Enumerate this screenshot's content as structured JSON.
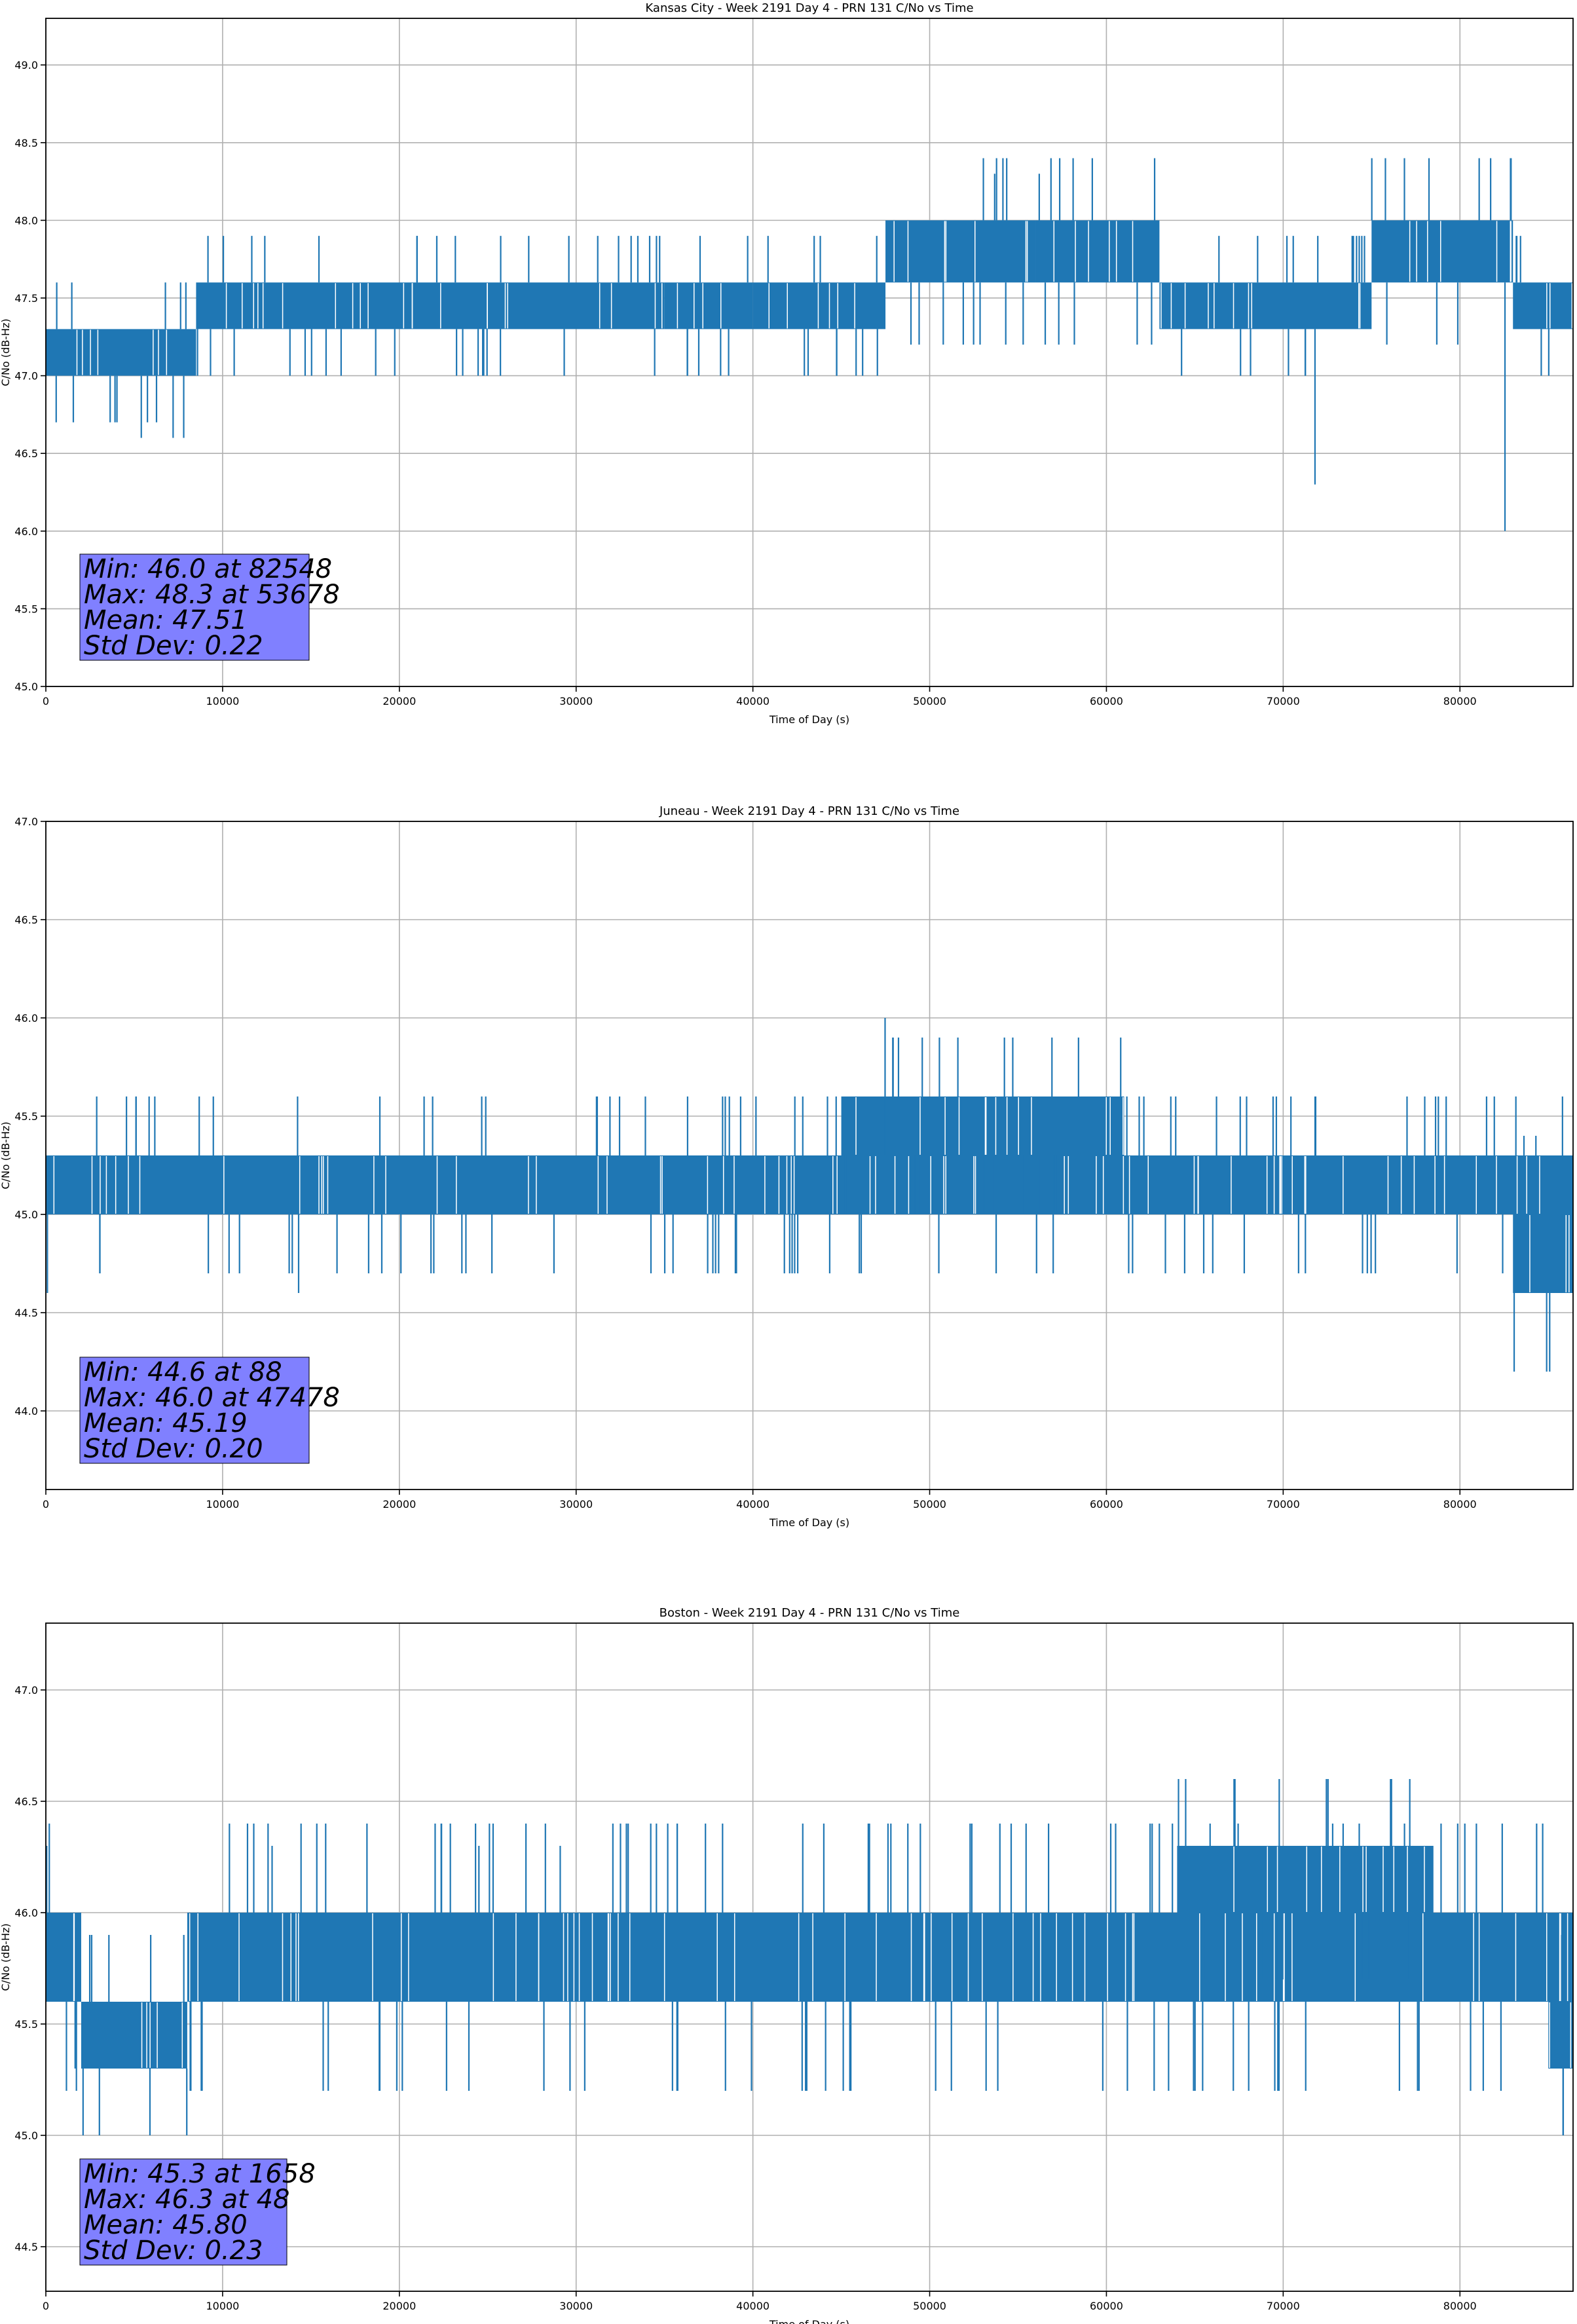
{
  "chart_data": [
    {
      "type": "line",
      "title": "Kansas City - Week 2191 Day 4 - PRN 131 C/No vs Time",
      "xlabel": "Time of Day (s)",
      "ylabel": "C/No (dB-Hz)",
      "xlim": [
        0,
        86400
      ],
      "ylim": [
        45.0,
        49.3
      ],
      "xticks": [
        0,
        10000,
        20000,
        30000,
        40000,
        50000,
        60000,
        70000,
        80000
      ],
      "yticks": [
        45.0,
        45.5,
        46.0,
        46.5,
        47.0,
        47.5,
        48.0,
        48.5,
        49.0
      ],
      "xtick_labels": [
        "0",
        "10000",
        "20000",
        "30000",
        "40000",
        "50000",
        "60000",
        "70000",
        "80000"
      ],
      "ytick_labels": [
        "45.0",
        "45.5",
        "46.0",
        "46.5",
        "47.0",
        "47.5",
        "48.0",
        "48.5",
        "49.0"
      ],
      "grid": true,
      "series_color": "#1f77b4",
      "band_segments": [
        [
          0,
          8500,
          47.0,
          47.3
        ],
        [
          8500,
          35000,
          47.3,
          47.6
        ],
        [
          35000,
          40000,
          47.3,
          47.6
        ],
        [
          40000,
          47500,
          47.3,
          47.6
        ],
        [
          47500,
          56000,
          47.6,
          48.0
        ],
        [
          56000,
          63000,
          47.6,
          48.0
        ],
        [
          63000,
          75000,
          47.3,
          47.6
        ],
        [
          75000,
          83000,
          47.6,
          48.0
        ],
        [
          83000,
          86400,
          47.3,
          47.6
        ]
      ],
      "spikes": [
        [
          5400,
          46.6
        ],
        [
          7200,
          46.6
        ],
        [
          7800,
          46.6
        ],
        [
          53678,
          48.3
        ],
        [
          56200,
          48.3
        ],
        [
          71800,
          46.3
        ],
        [
          82548,
          46.0
        ]
      ],
      "stats": [
        "Min: 46.0 at 82548",
        "Max: 48.3 at 53678",
        "Mean: 47.51",
        "Std Dev: 0.22"
      ],
      "stats_box_color": "#8080ff"
    },
    {
      "type": "line",
      "title": "Juneau - Week 2191 Day 4 - PRN 131 C/No vs Time",
      "xlabel": "Time of Day (s)",
      "ylabel": "C/No (dB-Hz)",
      "xlim": [
        0,
        86400
      ],
      "ylim": [
        43.6,
        47.0
      ],
      "xticks": [
        0,
        10000,
        20000,
        30000,
        40000,
        50000,
        60000,
        70000,
        80000
      ],
      "yticks": [
        44.0,
        44.5,
        45.0,
        45.5,
        46.0,
        46.5,
        47.0
      ],
      "xtick_labels": [
        "0",
        "10000",
        "20000",
        "30000",
        "40000",
        "50000",
        "60000",
        "70000",
        "80000"
      ],
      "ytick_labels": [
        "44.0",
        "44.5",
        "45.0",
        "45.5",
        "46.0",
        "46.5",
        "47.0"
      ],
      "grid": true,
      "series_color": "#1f77b4",
      "band_segments": [
        [
          0,
          86400,
          45.0,
          45.3
        ],
        [
          45000,
          55000,
          45.3,
          45.6
        ],
        [
          55000,
          61000,
          45.3,
          45.6
        ],
        [
          83000,
          86400,
          44.6,
          45.0
        ]
      ],
      "spikes": [
        [
          88,
          44.6
        ],
        [
          14300,
          44.6
        ],
        [
          47478,
          46.0
        ]
      ],
      "stats": [
        "Min: 44.6 at 88",
        "Max: 46.0 at 47478",
        "Mean: 45.19",
        "Std Dev: 0.20"
      ],
      "stats_box_color": "#8080ff"
    },
    {
      "type": "line",
      "title": "Boston - Week 2191 Day 4 - PRN 131 C/No vs Time",
      "xlabel": "Time of Day (s)",
      "ylabel": "C/No (dB-Hz)",
      "xlim": [
        0,
        86400
      ],
      "ylim": [
        44.3,
        47.3
      ],
      "xticks": [
        0,
        10000,
        20000,
        30000,
        40000,
        50000,
        60000,
        70000,
        80000
      ],
      "yticks": [
        44.5,
        45.0,
        45.5,
        46.0,
        46.5,
        47.0
      ],
      "xtick_labels": [
        "0",
        "10000",
        "20000",
        "30000",
        "40000",
        "50000",
        "60000",
        "70000",
        "80000"
      ],
      "ytick_labels": [
        "44.5",
        "45.0",
        "45.5",
        "46.0",
        "46.5",
        "47.0"
      ],
      "grid": true,
      "series_color": "#1f77b4",
      "band_segments": [
        [
          0,
          2000,
          45.6,
          46.0
        ],
        [
          2000,
          8000,
          45.3,
          45.6
        ],
        [
          8000,
          86400,
          45.6,
          46.0
        ],
        [
          64000,
          78500,
          46.0,
          46.3
        ],
        [
          85000,
          86400,
          45.3,
          45.6
        ]
      ],
      "spikes": [
        [
          48,
          46.3
        ],
        [
          1658,
          45.3
        ],
        [
          12800,
          46.3
        ],
        [
          24500,
          46.3
        ],
        [
          29100,
          46.3
        ]
      ],
      "stats": [
        "Min: 45.3 at 1658",
        "Max: 46.3 at 48",
        "Mean: 45.80",
        "Std Dev: 0.23"
      ],
      "stats_box_color": "#8080ff"
    }
  ]
}
